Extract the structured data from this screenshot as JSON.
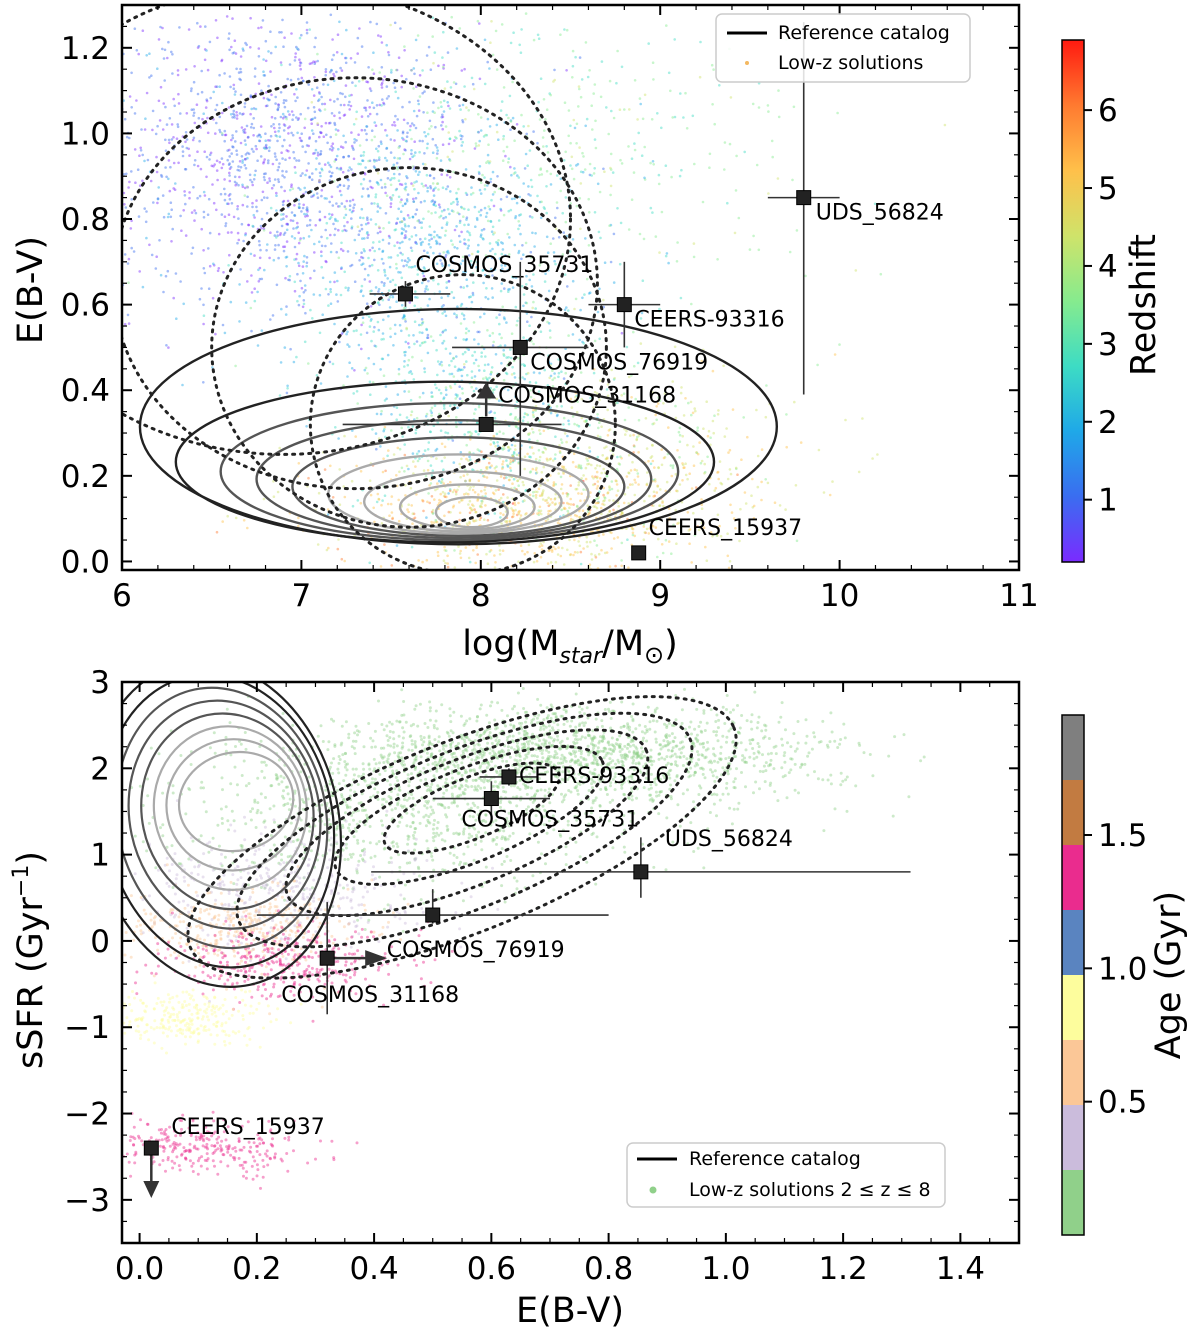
{
  "chart_data": [
    {
      "type": "scatter",
      "panel": "top",
      "xlabel": "log(M_star/M_⊙)",
      "ylabel": "E(B-V)",
      "xlim": [
        6,
        11
      ],
      "ylim": [
        -0.02,
        1.3
      ],
      "xticks": [
        6,
        7,
        8,
        9,
        10,
        11
      ],
      "yticks": [
        0.0,
        0.2,
        0.4,
        0.6,
        0.8,
        1.0,
        1.2
      ],
      "xtick_labels": [
        "6",
        "7",
        "8",
        "9",
        "10",
        "11"
      ],
      "ytick_labels": [
        "0.0",
        "0.2",
        "0.4",
        "0.6",
        "0.8",
        "1.0",
        "1.2"
      ],
      "legend": {
        "location": "top-right",
        "entries": [
          "Reference catalog",
          "Low-z solutions"
        ]
      },
      "colorbar": {
        "label": "Redshift",
        "range": [
          0.2,
          6.9
        ],
        "ticks": [
          1,
          2,
          3,
          4,
          5,
          6
        ],
        "tick_labels": [
          "1",
          "2",
          "3",
          "4",
          "5",
          "6"
        ],
        "colormap": [
          "#7a2bff",
          "#3a6df0",
          "#1fa8e8",
          "#3ddcc4",
          "#86eb8e",
          "#cfe36a",
          "#ffc04a",
          "#ff7a30",
          "#ff1a10"
        ]
      },
      "points": [
        {
          "name": "UDS_56824",
          "x": 9.8,
          "y": 0.85,
          "xerr": [
            0.2,
            0.2
          ],
          "yerr": [
            0.46,
            0.41
          ]
        },
        {
          "name": "COSMOS_35731",
          "x": 7.58,
          "y": 0.625,
          "xerr": [
            0.2,
            0.25
          ],
          "yerr": [
            0.03,
            0.03
          ]
        },
        {
          "name": "CEERS-93316",
          "x": 8.8,
          "y": 0.6,
          "xerr": [
            0.2,
            0.2
          ],
          "yerr": [
            0.1,
            0.1
          ]
        },
        {
          "name": "COSMOS_76919",
          "x": 8.22,
          "y": 0.5,
          "xerr": [
            0.38,
            0.38
          ],
          "yerr": [
            0.3,
            0.2
          ]
        },
        {
          "name": "COSMOS_31168",
          "x": 8.03,
          "y": 0.32,
          "xerr": [
            0.8,
            0.42
          ],
          "yerr": [
            0.0,
            0.0
          ],
          "lower_limit_y": true
        },
        {
          "name": "CEERS_15937",
          "x": 8.88,
          "y": 0.02,
          "xerr": [
            0,
            0
          ],
          "yerr": [
            0,
            0
          ]
        }
      ]
    },
    {
      "type": "scatter",
      "panel": "bottom",
      "xlabel": "E(B-V)",
      "ylabel": "sSFR (Gyr⁻¹)",
      "xlim": [
        -0.03,
        1.5
      ],
      "ylim": [
        -3.5,
        3.0
      ],
      "xticks": [
        0.0,
        0.2,
        0.4,
        0.6,
        0.8,
        1.0,
        1.2,
        1.4
      ],
      "yticks": [
        -3,
        -2,
        -1,
        0,
        1,
        2,
        3
      ],
      "xtick_labels": [
        "0.0",
        "0.2",
        "0.4",
        "0.6",
        "0.8",
        "1.0",
        "1.2",
        "1.4"
      ],
      "ytick_labels": [
        "−3",
        "−2",
        "−1",
        "0",
        "1",
        "2",
        "3"
      ],
      "legend": {
        "location": "bottom-right",
        "entries": [
          "Reference catalog",
          "Low-z solutions 2 ≤ z ≤ 8"
        ]
      },
      "colorbar": {
        "label": "Age (Gyr)",
        "range": [
          0.0,
          1.95
        ],
        "ticks": [
          0.5,
          1.0,
          1.5
        ],
        "tick_labels": [
          "0.5",
          "1.0",
          "1.5"
        ],
        "colors": [
          "#90d08a",
          "#cbbcdc",
          "#fbc797",
          "#fdfd9d",
          "#5a84c0",
          "#ea2c8e",
          "#c27b41",
          "#7f7f7f"
        ]
      },
      "points": [
        {
          "name": "CEERS-93316",
          "x": 0.63,
          "y": 1.9,
          "xerr": [
            0.05,
            0.05
          ],
          "yerr": [
            0.1,
            0.1
          ]
        },
        {
          "name": "COSMOS_35731",
          "x": 0.6,
          "y": 1.65,
          "xerr": [
            0.1,
            0.1
          ],
          "yerr": [
            0.25,
            0.2
          ]
        },
        {
          "name": "UDS_56824",
          "x": 0.855,
          "y": 0.8,
          "xerr": [
            0.46,
            0.46
          ],
          "yerr": [
            0.3,
            0.4
          ]
        },
        {
          "name": "COSMOS_76919",
          "x": 0.5,
          "y": 0.3,
          "xerr": [
            0.3,
            0.3
          ],
          "yerr": [
            0.1,
            0.3
          ]
        },
        {
          "name": "COSMOS_31168",
          "x": 0.32,
          "y": -0.2,
          "xerr": [
            0.0,
            0.0
          ],
          "yerr": [
            0.65,
            0.65
          ],
          "lower_limit_x": true
        },
        {
          "name": "CEERS_15937",
          "x": 0.02,
          "y": -2.4,
          "xerr": [
            0,
            0
          ],
          "yerr": [
            0,
            0
          ],
          "upper_limit_y": true
        }
      ]
    }
  ]
}
